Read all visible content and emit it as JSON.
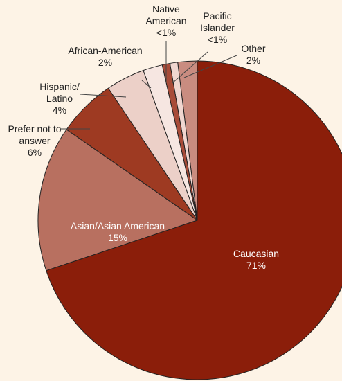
{
  "chart_data": {
    "type": "pie",
    "categories": [
      "Caucasian",
      "Asian/Asian American",
      "Prefer not to answer",
      "Hispanic/ Latino",
      "African-American",
      "Native American",
      "Pacific Islander",
      "Other"
    ],
    "values": [
      71,
      15,
      6,
      4,
      2,
      0.8,
      0.8,
      2
    ],
    "value_labels": [
      "71%",
      "15%",
      "6%",
      "4%",
      "2%",
      "<1%",
      "<1%",
      "2%"
    ],
    "colors": [
      "#8b1e0a",
      "#b87060",
      "#9e3a22",
      "#ecd0c8",
      "#f6e6e1",
      "#a84b38",
      "#f0d6d0",
      "#c98c80"
    ]
  }
}
